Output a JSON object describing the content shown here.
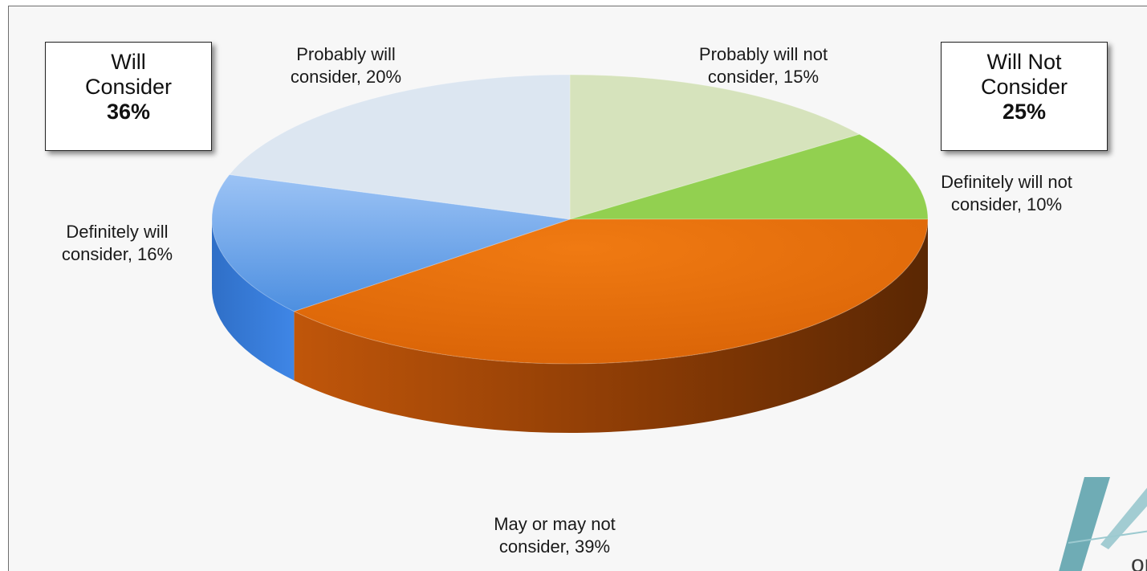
{
  "chart_data": {
    "type": "pie",
    "style": "3d-exploded-off",
    "slices": [
      {
        "label_lines": [
          "Probably will not",
          "consider, 15%"
        ],
        "value": 15,
        "color": "#d6e3bc"
      },
      {
        "label_lines": [
          "Definitely will not",
          "consider, 10%"
        ],
        "value": 10,
        "color": "#92d050"
      },
      {
        "label_lines": [
          "May or may not",
          "consider, 39%"
        ],
        "value": 39,
        "color": "#e36c09"
      },
      {
        "label_lines": [
          "Definitely will",
          "consider, 16%"
        ],
        "value": 16,
        "color": "#8db3e2"
      },
      {
        "label_lines": [
          "Probably will",
          "consider, 20%"
        ],
        "value": 20,
        "color": "#dce6f1"
      }
    ],
    "callouts": {
      "will": {
        "lines": [
          "Will",
          "Consider"
        ],
        "pct": "36%"
      },
      "will_not": {
        "lines": [
          "Will Not",
          "Consider"
        ],
        "pct": "25%"
      }
    }
  },
  "logo": {
    "partial_text": "or",
    "color": "#5fa3ad"
  }
}
